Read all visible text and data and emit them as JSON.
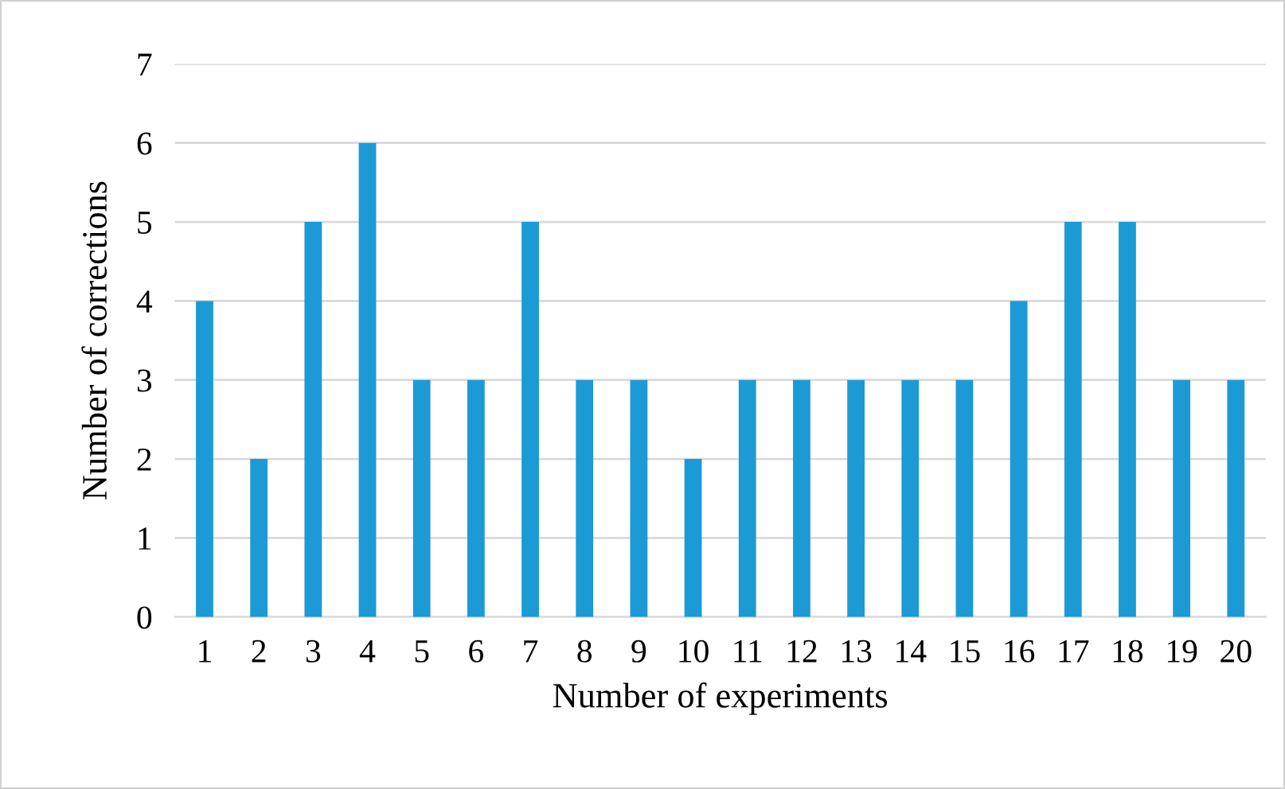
{
  "chart_data": {
    "type": "bar",
    "xlabel": "Number of experiments",
    "ylabel": "Number of corrections",
    "categories": [
      "1",
      "2",
      "3",
      "4",
      "5",
      "6",
      "7",
      "8",
      "9",
      "10",
      "11",
      "12",
      "13",
      "14",
      "15",
      "16",
      "17",
      "18",
      "19",
      "20"
    ],
    "values": [
      4,
      2,
      5,
      6,
      3,
      3,
      5,
      3,
      3,
      2,
      3,
      3,
      3,
      3,
      3,
      4,
      5,
      5,
      3,
      3
    ],
    "color": "#1c9ad6",
    "ylim": [
      0,
      7
    ],
    "yticks": [
      0,
      1,
      2,
      3,
      4,
      5,
      6,
      7
    ],
    "grid": "y",
    "legend": false
  }
}
